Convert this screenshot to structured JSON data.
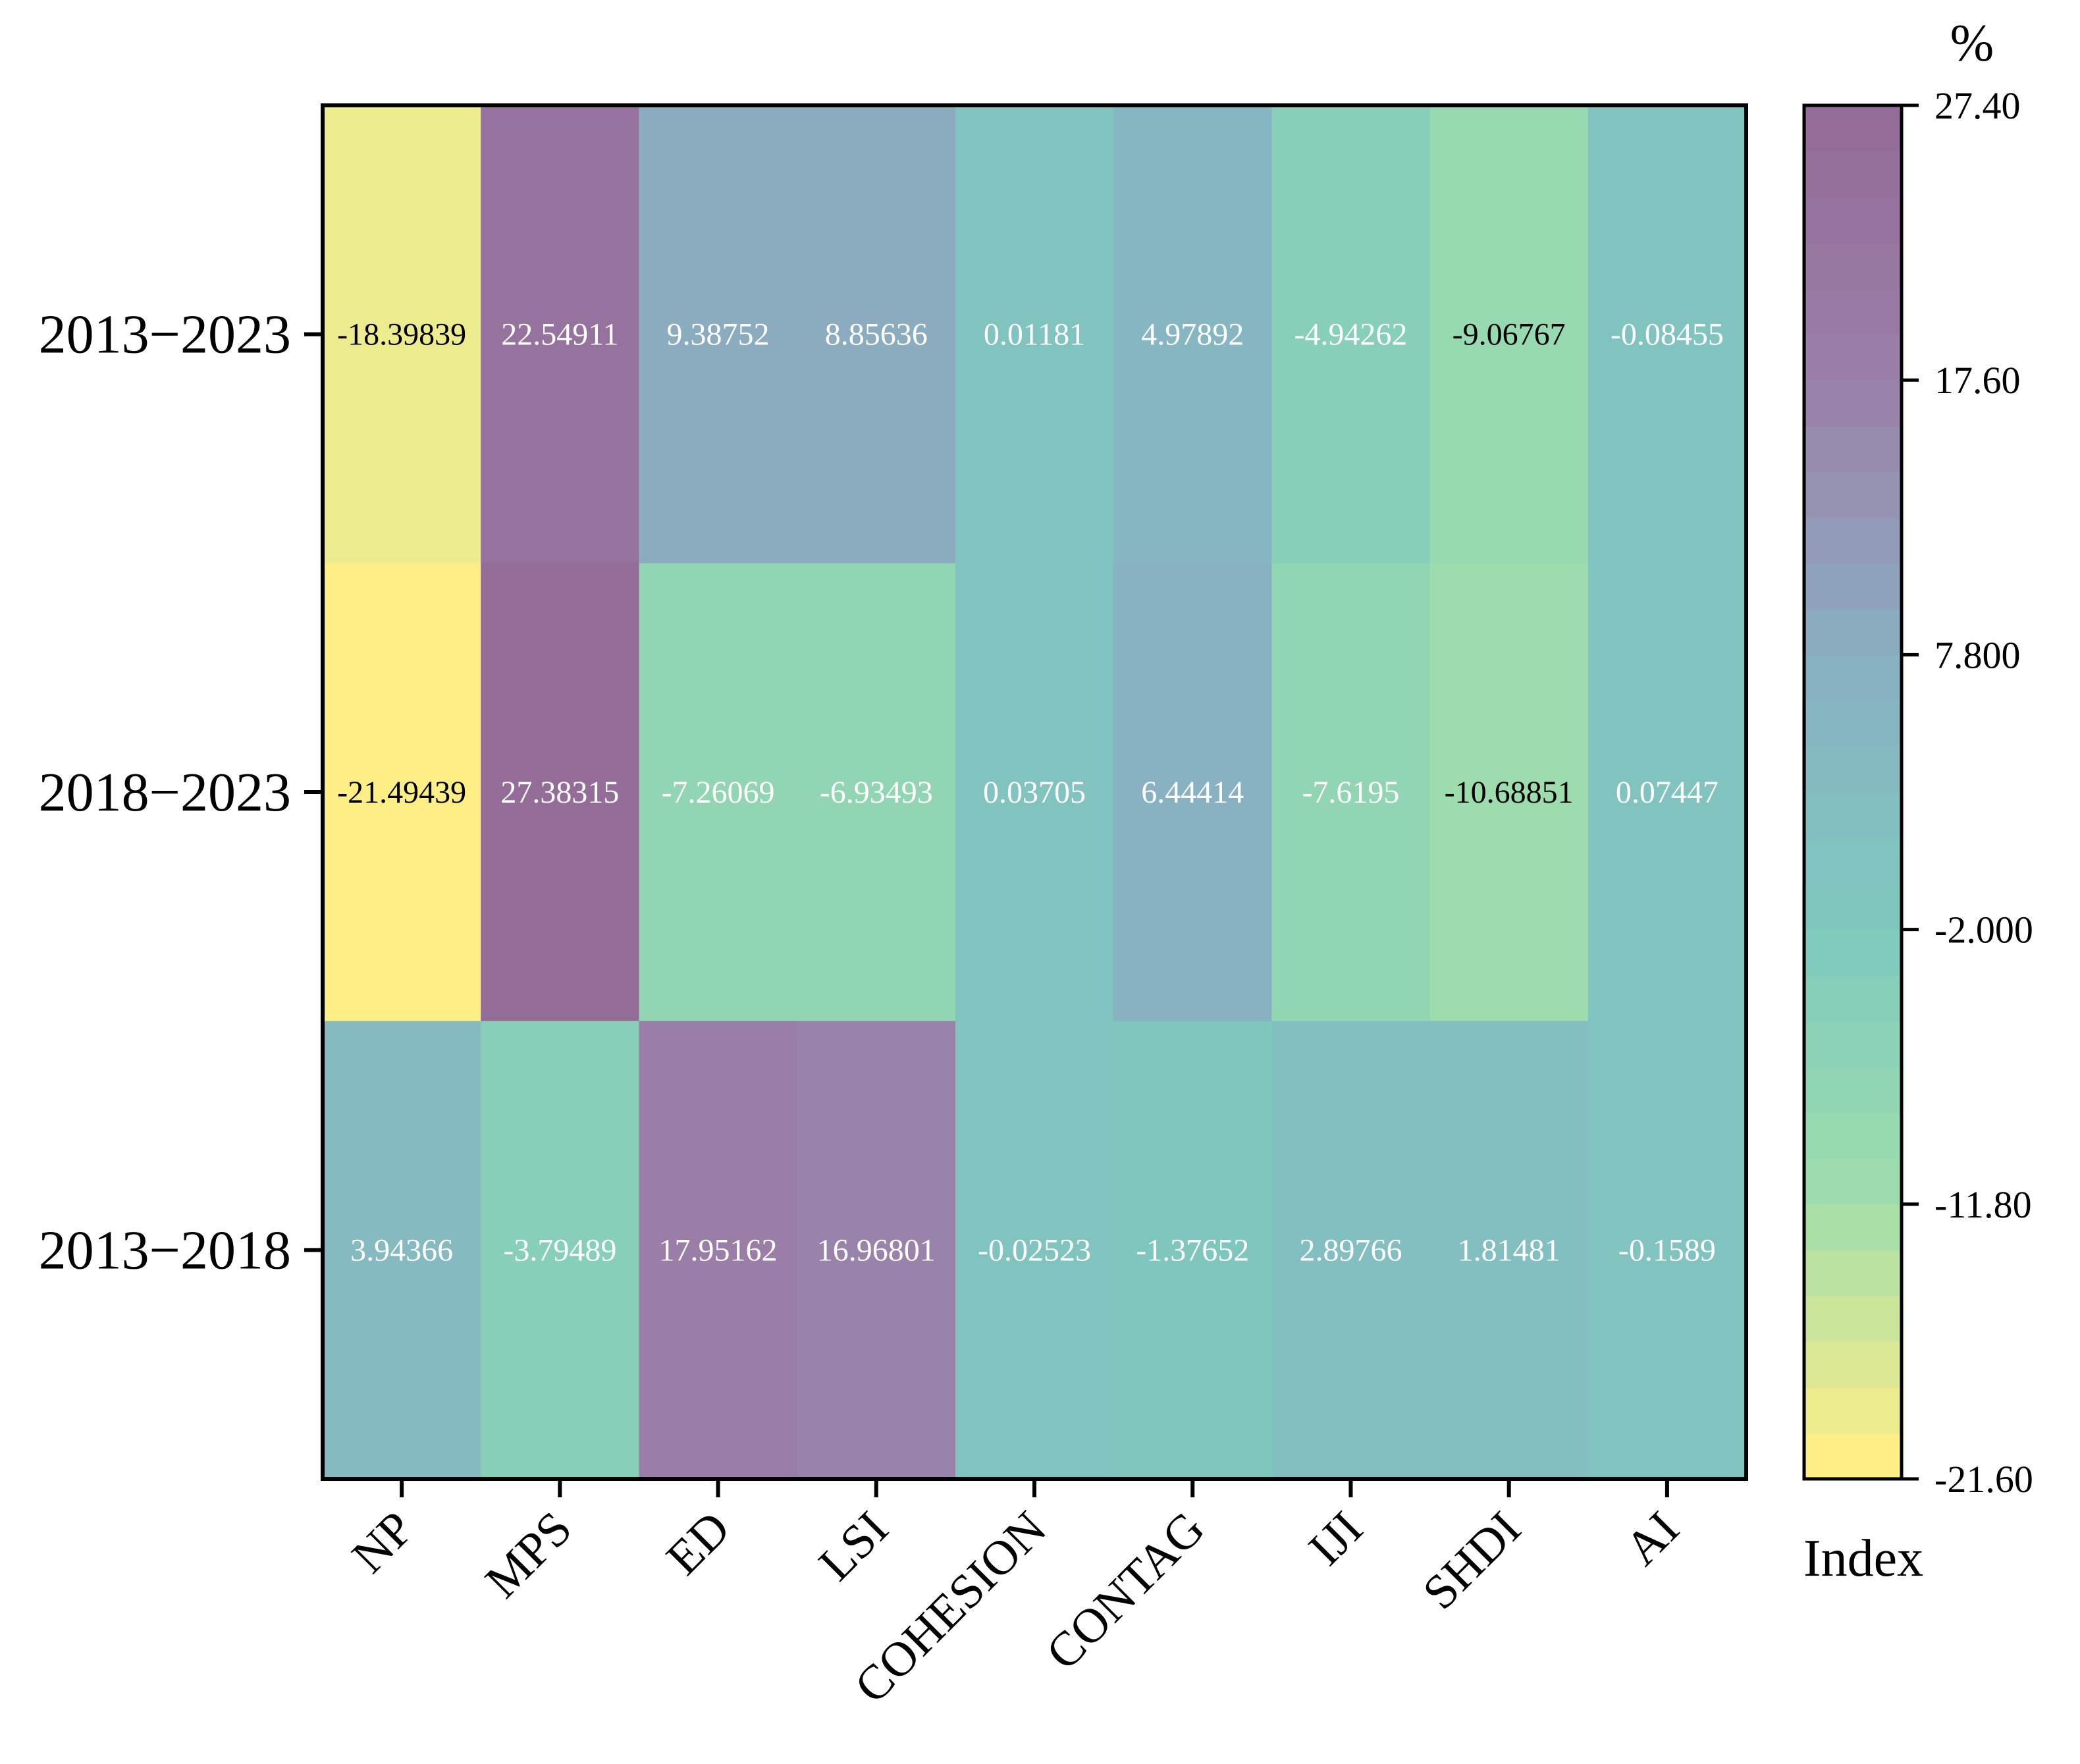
{
  "chart_data": {
    "type": "heatmap",
    "rows": [
      "2013−2023",
      "2018−2023",
      "2013−2018"
    ],
    "columns": [
      "NP",
      "MPS",
      "ED",
      "LSI",
      "COHESION",
      "CONTAG",
      "IJI",
      "SHDI",
      "AI"
    ],
    "values": [
      [
        -18.39839,
        22.54911,
        9.38752,
        8.85636,
        0.01181,
        4.97892,
        -4.94262,
        -9.06767,
        -0.08455
      ],
      [
        -21.49439,
        27.38315,
        -7.26069,
        -6.93493,
        0.03705,
        6.44414,
        -7.6195,
        -10.68851,
        0.07447
      ],
      [
        3.94366,
        -3.79489,
        17.95162,
        16.96801,
        -0.02523,
        -1.37652,
        2.89766,
        1.81481,
        -0.1589
      ]
    ],
    "value_labels": [
      [
        "-18.39839",
        "22.54911",
        "9.38752",
        "8.85636",
        "0.01181",
        "4.97892",
        "-4.94262",
        "-9.06767",
        "-0.08455"
      ],
      [
        "-21.49439",
        "27.38315",
        "-7.26069",
        "-6.93493",
        "0.03705",
        "6.44414",
        "-7.6195",
        "-10.68851",
        "0.07447"
      ],
      [
        "3.94366",
        "-3.79489",
        "17.95162",
        "16.96801",
        "-0.02523",
        "-1.37652",
        "2.89766",
        "1.81481",
        "-0.1589"
      ]
    ],
    "colorbar": {
      "min": -21.6,
      "max": 27.4,
      "ticks": [
        27.4,
        17.6,
        7.8,
        -2.0,
        -11.8,
        -21.6
      ],
      "tick_labels": [
        "27.40",
        "17.60",
        "7.800",
        "-2.000",
        "-11.80",
        "-21.60"
      ],
      "unit": "%",
      "title": "Index",
      "steps": 30,
      "colors": [
        "#fdee86",
        "#9dddac",
        "#7ec9be",
        "#89b0c2",
        "#9b81a9",
        "#946c98"
      ]
    }
  }
}
